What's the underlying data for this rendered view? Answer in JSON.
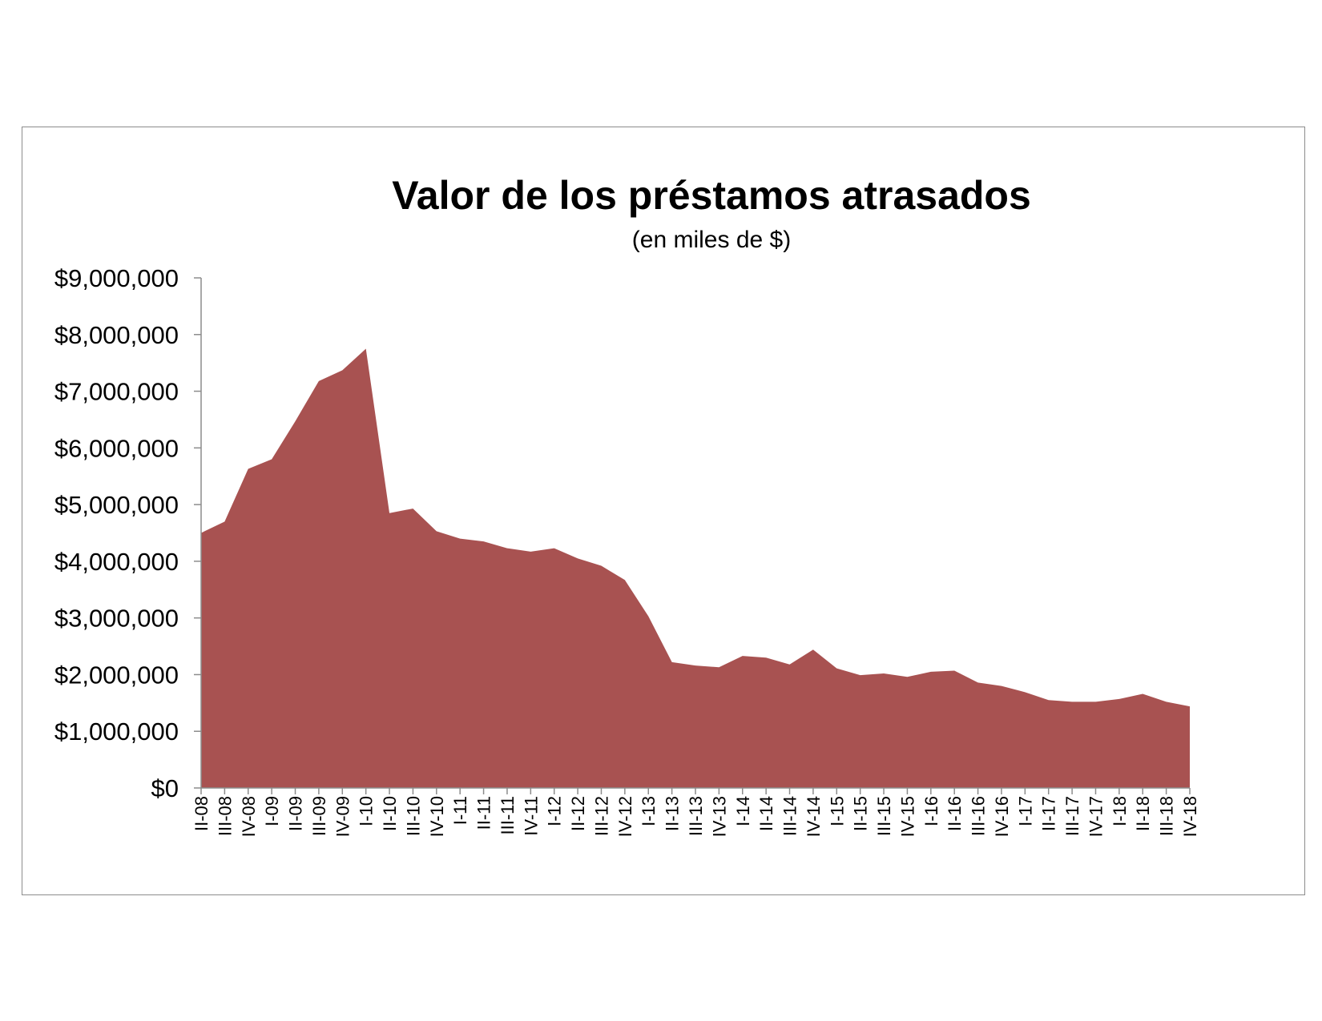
{
  "chart_data": {
    "type": "area",
    "title": "Valor de los préstamos atrasados",
    "subtitle": "(en miles de $)",
    "color": "#a85251",
    "ylim": [
      0,
      9000000
    ],
    "ytick_labels": [
      "$0",
      "$1,000,000",
      "$2,000,000",
      "$3,000,000",
      "$4,000,000",
      "$5,000,000",
      "$6,000,000",
      "$7,000,000",
      "$8,000,000",
      "$9,000,000"
    ],
    "categories": [
      "II-08",
      "III-08",
      "IV-08",
      "I-09",
      "II-09",
      "III-09",
      "IV-09",
      "I-10",
      "II-10",
      "III-10",
      "IV-10",
      "I-11",
      "II-11",
      "III-11",
      "IV-11",
      "I-12",
      "II-12",
      "III-12",
      "IV-12",
      "I-13",
      "II-13",
      "III-13",
      "IV-13",
      "I-14",
      "II-14",
      "III-14",
      "IV-14",
      "I-15",
      "II-15",
      "III-15",
      "IV-15",
      "I-16",
      "II-16",
      "III-16",
      "IV-16",
      "I-17",
      "II-17",
      "III-17",
      "IV-17",
      "I-18",
      "II-18",
      "III-18",
      "IV-18"
    ],
    "values": [
      4500000,
      4700000,
      5630000,
      5800000,
      6470000,
      7180000,
      7370000,
      7750000,
      4850000,
      4930000,
      4530000,
      4400000,
      4350000,
      4230000,
      4170000,
      4230000,
      4050000,
      3920000,
      3670000,
      3030000,
      2220000,
      2160000,
      2130000,
      2330000,
      2300000,
      2180000,
      2440000,
      2110000,
      1990000,
      2020000,
      1960000,
      2050000,
      2070000,
      1860000,
      1800000,
      1690000,
      1550000,
      1520000,
      1520000,
      1570000,
      1660000,
      1520000,
      1440000
    ]
  }
}
